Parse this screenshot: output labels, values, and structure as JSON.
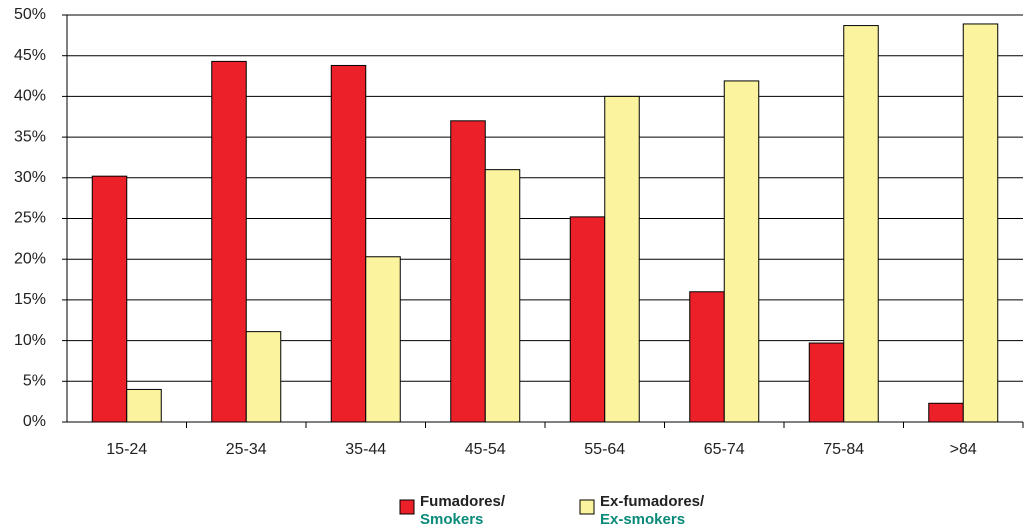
{
  "chart_data": {
    "type": "bar",
    "categories": [
      "15-24",
      "25-34",
      "35-44",
      "45-54",
      "55-64",
      "65-74",
      "75-84",
      ">84"
    ],
    "series": [
      {
        "name": "Fumadores/",
        "subname": "Smokers",
        "subname_color": "#0a8a7a",
        "color": "#ec2028",
        "values": [
          30.2,
          44.3,
          43.8,
          37,
          25.2,
          16,
          9.7,
          2.3
        ]
      },
      {
        "name": "Ex-fumadores/",
        "subname": "Ex-smokers",
        "subname_color": "#0a8a7a",
        "color": "#fbf39d",
        "values": [
          4,
          11.1,
          20.3,
          31,
          40,
          41.9,
          48.7,
          48.9
        ]
      }
    ],
    "ylim": [
      0,
      50
    ],
    "yticks": [
      {
        "value": 0,
        "label": "0%"
      },
      {
        "value": 5,
        "label": "5%"
      },
      {
        "value": 10,
        "label": "10%"
      },
      {
        "value": 15,
        "label": "15%"
      },
      {
        "value": 20,
        "label": "20%"
      },
      {
        "value": 25,
        "label": "25%"
      },
      {
        "value": 30,
        "label": "30%"
      },
      {
        "value": 35,
        "label": "35%"
      },
      {
        "value": 40,
        "label": "40%"
      },
      {
        "value": 45,
        "label": "45%"
      },
      {
        "value": 50,
        "label": "50%"
      }
    ],
    "grid": true
  }
}
